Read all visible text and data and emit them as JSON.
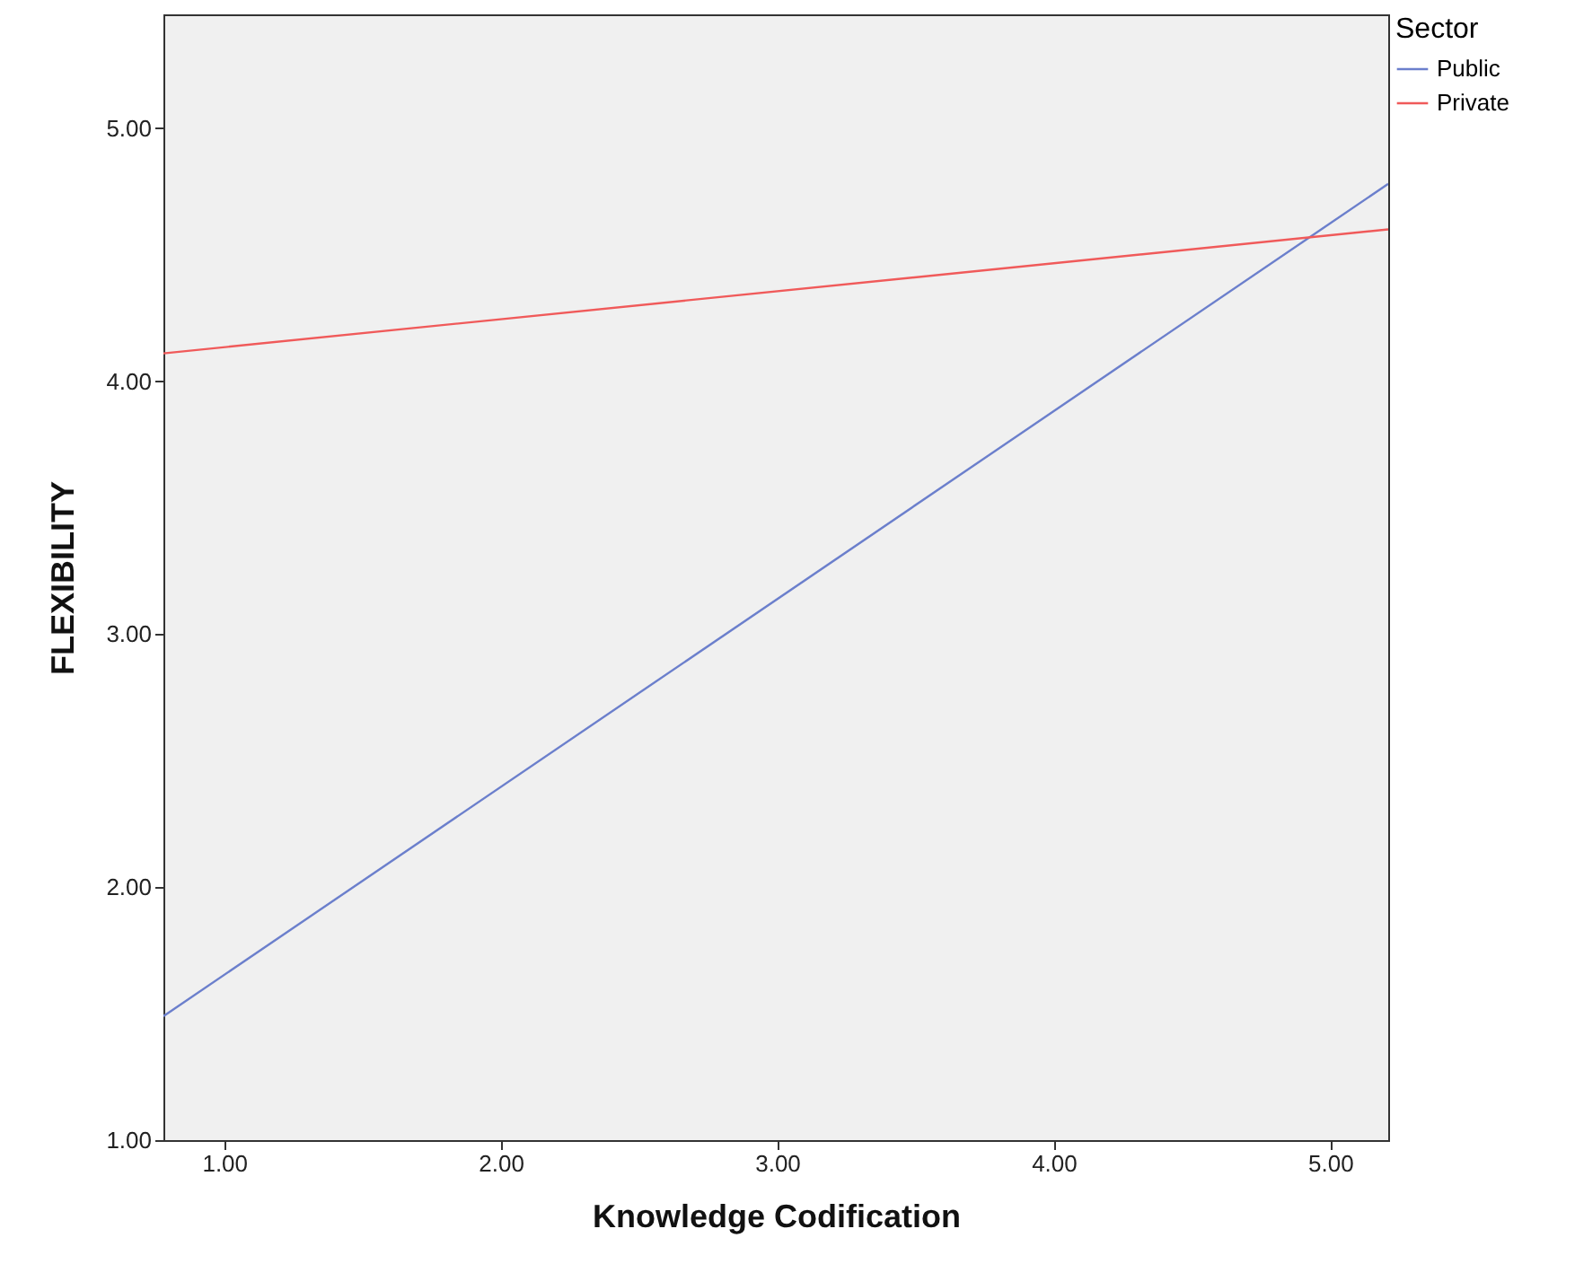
{
  "chart_data": {
    "type": "line",
    "xlabel": "Knowledge Codification",
    "ylabel": "FLEXIBILITY",
    "legend_title": "Sector",
    "x": [
      0.78,
      5.21
    ],
    "series": [
      {
        "name": "Public",
        "color": "#6b7fcc",
        "values": [
          1.49,
          4.78
        ]
      },
      {
        "name": "Private",
        "color": "#f05a5a",
        "values": [
          4.11,
          4.6
        ]
      }
    ],
    "xlim": [
      0.78,
      5.21
    ],
    "xticks": [
      {
        "value": 1,
        "label": "1.00"
      },
      {
        "value": 2,
        "label": "2.00"
      },
      {
        "value": 3,
        "label": "3.00"
      },
      {
        "value": 4,
        "label": "4.00"
      },
      {
        "value": 5,
        "label": "5.00"
      }
    ],
    "ylim": [
      1,
      5.45
    ],
    "yticks": [
      {
        "value": 1,
        "label": "1.00"
      },
      {
        "value": 2,
        "label": "2.00"
      },
      {
        "value": 3,
        "label": "3.00"
      },
      {
        "value": 4,
        "label": "4.00"
      },
      {
        "value": 5,
        "label": "5.00"
      }
    ],
    "grid": false,
    "legend": "top right",
    "marker": "none",
    "line_style": "solid"
  }
}
